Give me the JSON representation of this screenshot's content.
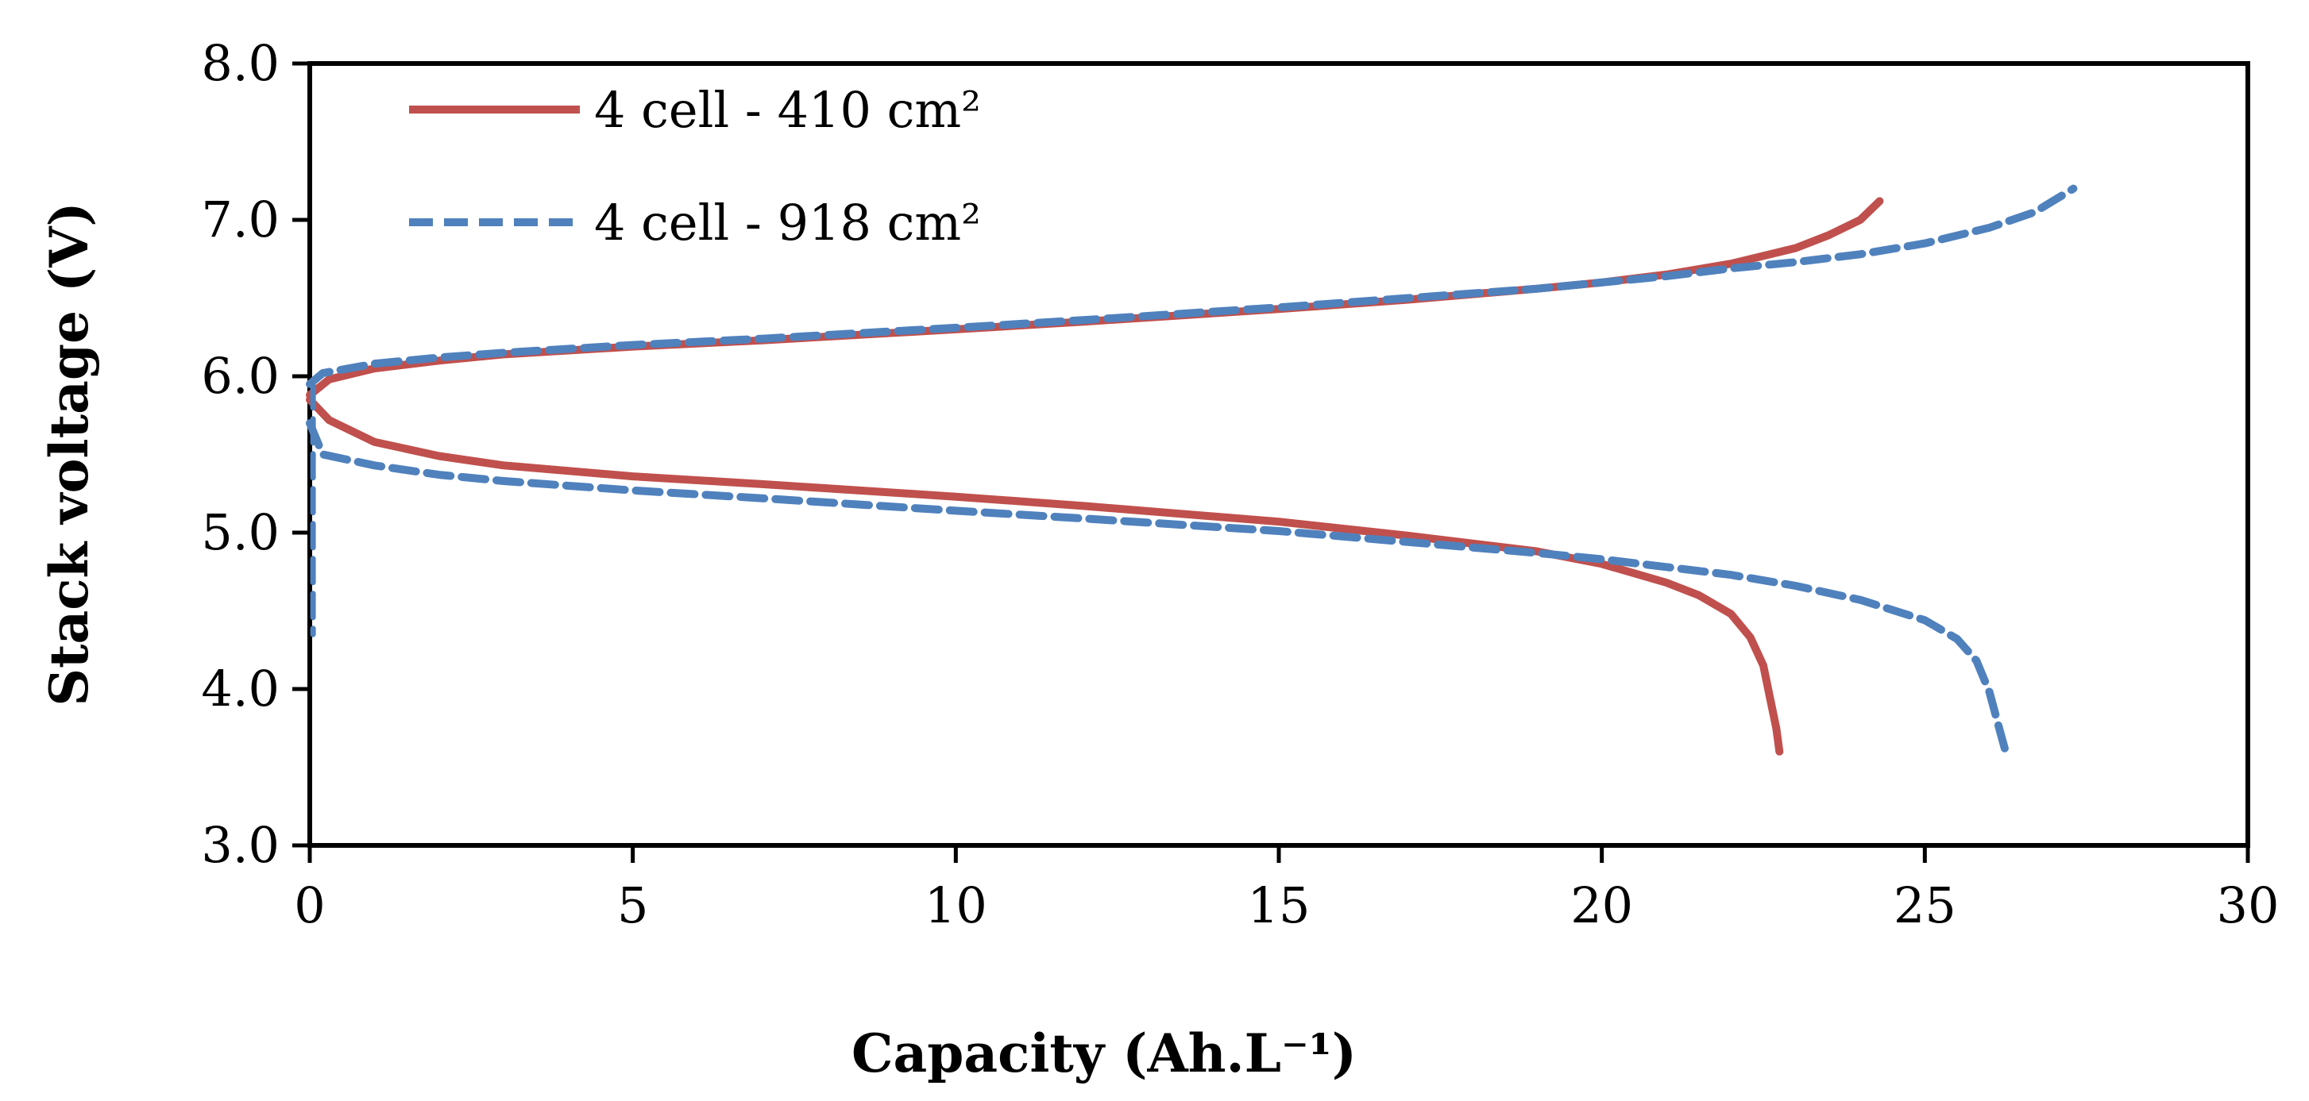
{
  "chart_data": {
    "type": "line",
    "title": "",
    "xlabel": "Capacity (Ah.L⁻¹)",
    "ylabel": "Stack voltage (V)",
    "xlim": [
      0,
      30
    ],
    "ylim": [
      3.0,
      8.0
    ],
    "x_ticks": [
      "0",
      "5",
      "10",
      "15",
      "20",
      "25",
      "30"
    ],
    "y_ticks": [
      "3.0",
      "4.0",
      "5.0",
      "6.0",
      "7.0",
      "8.0"
    ],
    "grid": false,
    "legend_position": "top-left",
    "series": [
      {
        "name": "4 cell - 410 cm²",
        "color": "#c0504d",
        "dash": "solid",
        "charge": {
          "x": [
            0,
            0.3,
            1,
            2,
            3,
            5,
            7,
            10,
            12,
            15,
            17,
            19,
            20,
            21,
            22,
            23,
            23.5,
            24,
            24.3
          ],
          "y": [
            5.88,
            5.98,
            6.05,
            6.1,
            6.14,
            6.19,
            6.23,
            6.3,
            6.35,
            6.43,
            6.49,
            6.56,
            6.6,
            6.65,
            6.72,
            6.82,
            6.9,
            7.0,
            7.12
          ]
        },
        "discharge": {
          "x": [
            0,
            0.3,
            1,
            2,
            3,
            5,
            7,
            10,
            12,
            15,
            17,
            19,
            20,
            21,
            21.5,
            22,
            22.3,
            22.5,
            22.6,
            22.7,
            22.75
          ],
          "y": [
            5.85,
            5.72,
            5.58,
            5.49,
            5.43,
            5.36,
            5.31,
            5.23,
            5.17,
            5.07,
            4.98,
            4.88,
            4.8,
            4.68,
            4.6,
            4.48,
            4.33,
            4.15,
            3.95,
            3.75,
            3.6
          ]
        }
      },
      {
        "name": "4 cell - 918 cm²",
        "color": "#4f81bd",
        "dash": "dashed",
        "charge": {
          "x": [
            0,
            0.2,
            1,
            2,
            3,
            5,
            7,
            10,
            12,
            15,
            17,
            19,
            20,
            21,
            22,
            23,
            24,
            25,
            26,
            26.7,
            27.3
          ],
          "y": [
            5.95,
            6.02,
            6.08,
            6.12,
            6.15,
            6.2,
            6.24,
            6.31,
            6.36,
            6.44,
            6.5,
            6.56,
            6.6,
            6.64,
            6.69,
            6.73,
            6.78,
            6.85,
            6.95,
            7.05,
            7.2
          ]
        },
        "discharge": {
          "x": [
            0,
            0.2,
            1,
            2,
            3,
            5,
            7,
            10,
            12,
            15,
            17,
            19,
            20,
            21,
            22,
            23,
            24,
            25,
            25.5,
            25.8,
            26.0,
            26.15,
            26.25
          ],
          "y": [
            5.7,
            5.5,
            5.43,
            5.37,
            5.33,
            5.27,
            5.22,
            5.14,
            5.09,
            5.01,
            4.94,
            4.87,
            4.83,
            4.78,
            4.73,
            4.66,
            4.57,
            4.44,
            4.32,
            4.18,
            3.98,
            3.75,
            3.6
          ]
        },
        "initial_drop": {
          "x": [
            0.05,
            0.05
          ],
          "y": [
            5.95,
            4.35
          ]
        }
      }
    ]
  }
}
